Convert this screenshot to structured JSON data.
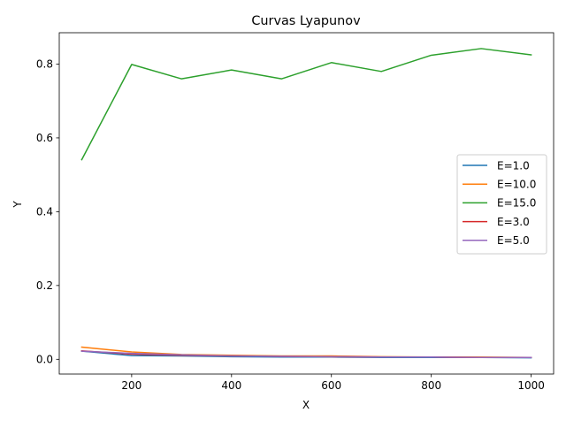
{
  "chart_data": {
    "type": "line",
    "title": "Curvas Lyapunov",
    "xlabel": "X",
    "ylabel": "Y",
    "xlim": [
      55,
      1045
    ],
    "ylim": [
      -0.04,
      0.885
    ],
    "xticks": [
      200,
      400,
      600,
      800,
      1000
    ],
    "xtick_labels": [
      "200",
      "400",
      "600",
      "800",
      "1000"
    ],
    "yticks": [
      0.0,
      0.2,
      0.4,
      0.6,
      0.8
    ],
    "ytick_labels": [
      "0.0",
      "0.2",
      "0.4",
      "0.6",
      "0.8"
    ],
    "grid": false,
    "legend_position": "center-right",
    "x": [
      100,
      200,
      300,
      400,
      500,
      600,
      700,
      800,
      900,
      1000
    ],
    "series": [
      {
        "name": "E=1.0",
        "color": "#1f77b4",
        "values": [
          0.022,
          0.01,
          0.009,
          0.007,
          0.006,
          0.006,
          0.005,
          0.005,
          0.005,
          0.004
        ]
      },
      {
        "name": "E=10.0",
        "color": "#ff7f0e",
        "values": [
          0.033,
          0.02,
          0.013,
          0.011,
          0.009,
          0.009,
          0.007,
          0.006,
          0.006,
          0.005
        ]
      },
      {
        "name": "E=15.0",
        "color": "#2ca02c",
        "values": [
          0.541,
          0.799,
          0.76,
          0.784,
          0.76,
          0.804,
          0.78,
          0.824,
          0.842,
          0.825
        ]
      },
      {
        "name": "E=3.0",
        "color": "#d62728",
        "values": [
          0.023,
          0.014,
          0.011,
          0.009,
          0.008,
          0.007,
          0.006,
          0.006,
          0.005,
          0.005
        ]
      },
      {
        "name": "E=5.0",
        "color": "#9467bd",
        "values": [
          0.022,
          0.016,
          0.012,
          0.009,
          0.008,
          0.007,
          0.006,
          0.006,
          0.005,
          0.005
        ]
      }
    ]
  }
}
